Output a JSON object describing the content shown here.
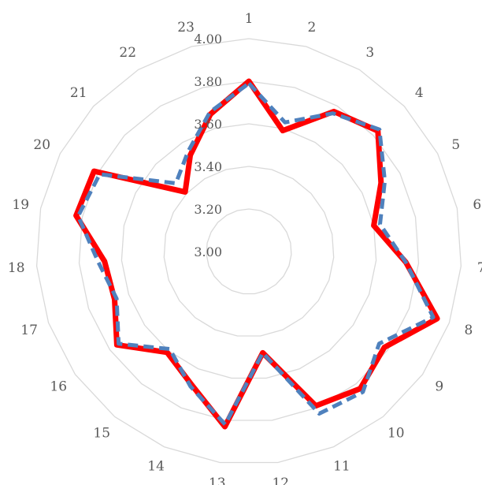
{
  "chart_data": {
    "type": "radar",
    "categories": [
      "1",
      "2",
      "3",
      "4",
      "5",
      "6",
      "7",
      "8",
      "9",
      "10",
      "11",
      "12",
      "13",
      "14",
      "15",
      "16",
      "17",
      "18",
      "19",
      "20",
      "21",
      "22",
      "23"
    ],
    "r_ticks": [
      "3.00",
      "3.20",
      "3.40",
      "3.60",
      "3.80",
      "4.00"
    ],
    "r_range": [
      3.0,
      4.0
    ],
    "grid": true,
    "series": [
      {
        "color": "#ff0000",
        "line_style": "solid",
        "values": [
          3.8,
          3.59,
          3.77,
          3.83,
          3.7,
          3.6,
          3.74,
          3.94,
          3.78,
          3.83,
          3.79,
          3.48,
          3.83,
          3.68,
          3.61,
          3.76,
          3.67,
          3.68,
          3.83,
          3.82,
          3.41,
          3.53,
          3.67
        ]
      },
      {
        "color": "#4f81bd",
        "line_style": "dashed",
        "values": [
          3.79,
          3.63,
          3.76,
          3.84,
          3.72,
          3.63,
          3.74,
          3.92,
          3.75,
          3.85,
          3.83,
          3.48,
          3.82,
          3.69,
          3.59,
          3.75,
          3.66,
          3.71,
          3.82,
          3.79,
          3.47,
          3.55,
          3.68
        ]
      }
    ]
  }
}
